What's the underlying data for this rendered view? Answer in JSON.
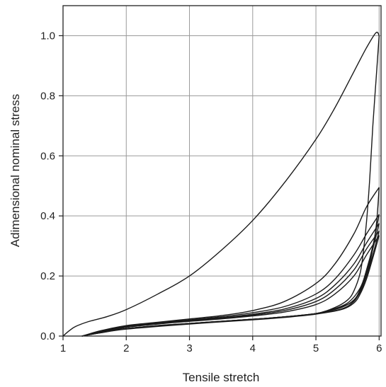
{
  "chart_data": {
    "type": "line",
    "title": "",
    "xlabel": "Tensile stretch",
    "ylabel": "Adimensional nominal stress",
    "xlim": [
      1,
      6.03
    ],
    "ylim": [
      0,
      1.1
    ],
    "xticks": [
      1,
      2,
      3,
      4,
      5,
      6
    ],
    "yticks": [
      0.0,
      0.2,
      0.4,
      0.6,
      0.8,
      1.0
    ],
    "xtick_labels": [
      "1",
      "2",
      "3",
      "4",
      "5",
      "6"
    ],
    "ytick_labels": [
      "0.0",
      "0.2",
      "0.4",
      "0.6",
      "0.8",
      "1.0"
    ],
    "grid": true,
    "legend": "none",
    "series": [
      {
        "x": [
          1.0,
          1.1,
          1.2,
          1.4,
          1.7,
          2.0,
          2.5,
          3.0,
          3.5,
          4.0,
          4.5,
          5.0,
          5.3,
          5.6,
          5.8,
          5.95,
          6.0
        ],
        "y": [
          0.0,
          0.018,
          0.032,
          0.048,
          0.065,
          0.088,
          0.14,
          0.2,
          0.285,
          0.385,
          0.51,
          0.655,
          0.76,
          0.88,
          0.96,
          1.01,
          1.0
        ]
      },
      {
        "x": [
          6.0,
          5.95,
          5.9,
          5.85,
          5.8,
          5.75,
          5.7,
          5.6,
          5.5,
          5.3,
          5.0,
          4.5,
          4.0,
          3.5,
          3.0,
          2.5,
          2.0,
          1.6,
          1.3
        ],
        "y": [
          1.0,
          0.85,
          0.7,
          0.52,
          0.38,
          0.28,
          0.21,
          0.15,
          0.12,
          0.095,
          0.075,
          0.064,
          0.056,
          0.049,
          0.042,
          0.035,
          0.025,
          0.012,
          0.0
        ]
      },
      {
        "x": [
          1.3,
          1.6,
          2.0,
          2.5,
          3.0,
          3.5,
          4.0,
          4.5,
          5.0,
          5.3,
          5.6,
          5.8,
          6.0
        ],
        "y": [
          0.0,
          0.018,
          0.035,
          0.046,
          0.057,
          0.068,
          0.085,
          0.115,
          0.175,
          0.24,
          0.34,
          0.43,
          0.495
        ]
      },
      {
        "x": [
          6.0,
          5.95,
          5.85,
          5.75,
          5.65,
          5.5,
          5.2,
          5.0,
          4.5,
          4.0,
          3.5,
          3.0,
          2.5,
          2.0,
          1.6,
          1.3
        ],
        "y": [
          0.495,
          0.36,
          0.24,
          0.17,
          0.13,
          0.105,
          0.085,
          0.075,
          0.064,
          0.056,
          0.049,
          0.042,
          0.035,
          0.025,
          0.012,
          0.0
        ]
      },
      {
        "x": [
          1.3,
          1.6,
          2.0,
          2.5,
          3.0,
          3.5,
          4.0,
          4.5,
          5.0,
          5.3,
          5.6,
          5.8,
          6.0
        ],
        "y": [
          0.0,
          0.016,
          0.033,
          0.044,
          0.054,
          0.064,
          0.078,
          0.098,
          0.14,
          0.19,
          0.27,
          0.34,
          0.405
        ]
      },
      {
        "x": [
          6.0,
          5.9,
          5.8,
          5.7,
          5.5,
          5.2,
          5.0,
          4.5,
          4.0,
          3.0,
          2.0,
          1.6,
          1.3
        ],
        "y": [
          0.405,
          0.3,
          0.22,
          0.16,
          0.11,
          0.085,
          0.075,
          0.064,
          0.056,
          0.042,
          0.025,
          0.012,
          0.0
        ]
      },
      {
        "x": [
          1.3,
          1.6,
          2.0,
          2.5,
          3.0,
          3.5,
          4.0,
          4.5,
          5.0,
          5.3,
          5.6,
          5.8,
          6.0
        ],
        "y": [
          0.0,
          0.015,
          0.031,
          0.042,
          0.052,
          0.061,
          0.073,
          0.09,
          0.125,
          0.17,
          0.24,
          0.31,
          0.375
        ]
      },
      {
        "x": [
          6.0,
          5.9,
          5.8,
          5.7,
          5.6,
          5.4,
          5.0,
          4.5,
          4.0,
          3.0,
          2.0,
          1.6,
          1.3
        ],
        "y": [
          0.375,
          0.29,
          0.21,
          0.155,
          0.12,
          0.095,
          0.075,
          0.064,
          0.056,
          0.042,
          0.025,
          0.012,
          0.0
        ]
      },
      {
        "x": [
          1.3,
          1.6,
          2.0,
          2.5,
          3.0,
          3.5,
          4.0,
          4.5,
          5.0,
          5.3,
          5.6,
          5.8,
          6.0
        ],
        "y": [
          0.0,
          0.014,
          0.03,
          0.041,
          0.05,
          0.059,
          0.07,
          0.085,
          0.115,
          0.155,
          0.22,
          0.29,
          0.35
        ]
      },
      {
        "x": [
          6.0,
          5.9,
          5.8,
          5.7,
          5.6,
          5.4,
          5.0,
          4.5,
          4.0,
          3.0,
          2.0,
          1.6,
          1.3
        ],
        "y": [
          0.35,
          0.27,
          0.2,
          0.15,
          0.115,
          0.09,
          0.074,
          0.063,
          0.055,
          0.041,
          0.024,
          0.011,
          0.0
        ]
      },
      {
        "x": [
          1.3,
          1.6,
          2.0,
          2.5,
          3.0,
          3.5,
          4.0,
          4.5,
          5.0,
          5.3,
          5.6,
          5.8,
          6.0
        ],
        "y": [
          0.0,
          0.013,
          0.029,
          0.04,
          0.049,
          0.057,
          0.067,
          0.08,
          0.105,
          0.14,
          0.2,
          0.27,
          0.335
        ]
      },
      {
        "x": [
          6.0,
          5.9,
          5.8,
          5.7,
          5.6,
          5.4,
          5.0,
          4.5,
          4.0,
          3.0,
          2.0,
          1.6,
          1.3
        ],
        "y": [
          0.335,
          0.26,
          0.19,
          0.14,
          0.11,
          0.088,
          0.073,
          0.062,
          0.054,
          0.04,
          0.023,
          0.011,
          0.0
        ]
      }
    ]
  }
}
